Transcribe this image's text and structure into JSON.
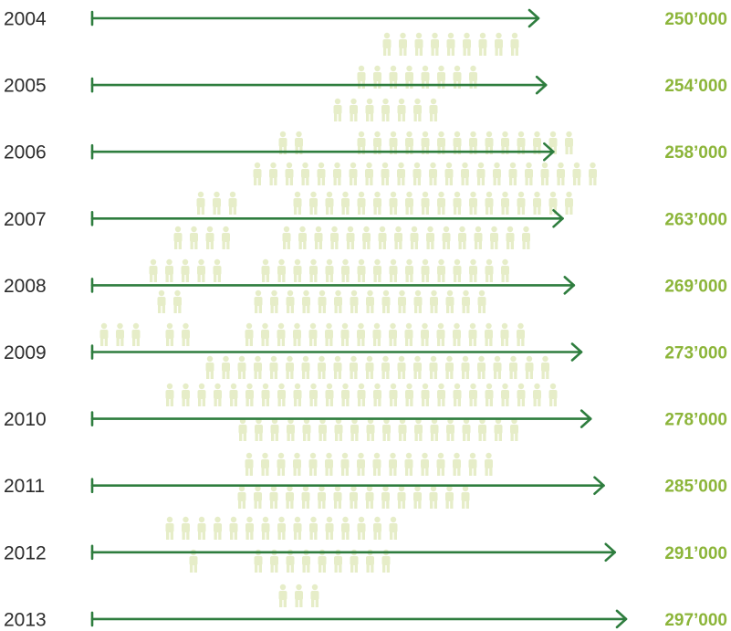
{
  "chart_data": {
    "type": "bar",
    "categories": [
      "2004",
      "2005",
      "2006",
      "2007",
      "2008",
      "2009",
      "2010",
      "2011",
      "2012",
      "2013"
    ],
    "values": [
      250000,
      254000,
      258000,
      263000,
      269000,
      273000,
      278000,
      285000,
      291000,
      297000
    ],
    "value_labels": [
      "250’000",
      "254’000",
      "258’000",
      "263’000",
      "269’000",
      "273’000",
      "278’000",
      "285’000",
      "291’000",
      "297’000"
    ],
    "title": "",
    "xlabel": "",
    "ylabel": "",
    "xlim": [
      0,
      300000
    ],
    "grid": false,
    "colors": {
      "arrow": "#2e7d3e",
      "value_label": "#8cb53a",
      "people": "#e6edc8",
      "year_label": "#2b2b2b"
    },
    "decoration": "people-icon"
  }
}
